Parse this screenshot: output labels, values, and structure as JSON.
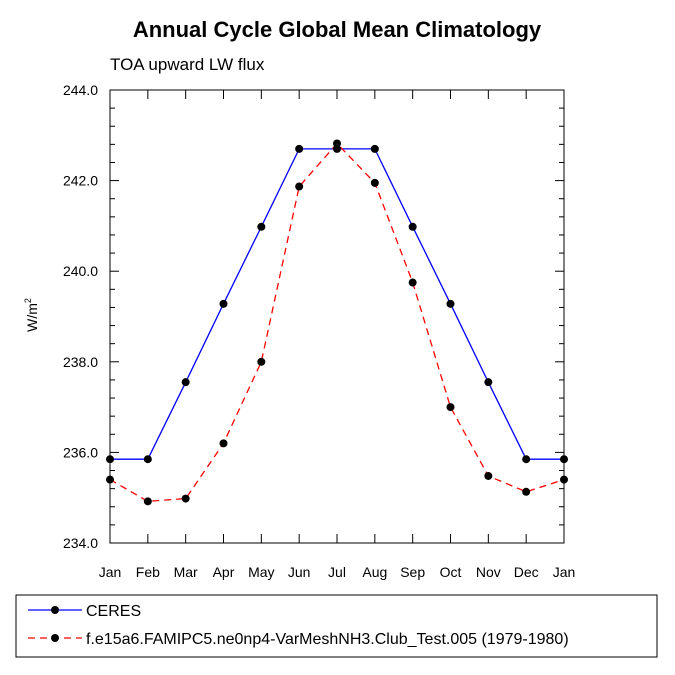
{
  "chart_data": {
    "type": "line",
    "title": "Annual Cycle Global Mean Climatology",
    "subtitle": "TOA upward LW flux",
    "ylabel": "W/m",
    "ylabel_sup": "2",
    "xlabel": "",
    "ylim": [
      234.0,
      244.0
    ],
    "yticks": [
      "234.0",
      "236.0",
      "238.0",
      "240.0",
      "242.0",
      "244.0"
    ],
    "categories": [
      "Jan",
      "Feb",
      "Mar",
      "Apr",
      "May",
      "Jun",
      "Jul",
      "Aug",
      "Sep",
      "Oct",
      "Nov",
      "Dec",
      "Jan"
    ],
    "grid": false,
    "legend_position": "bottom",
    "series": [
      {
        "name": "CERES",
        "color": "#0000ff",
        "dashed": false,
        "values": [
          235.85,
          235.85,
          237.55,
          239.28,
          240.98,
          242.7,
          242.7,
          242.7,
          240.98,
          239.28,
          237.55,
          235.85,
          235.85
        ]
      },
      {
        "name": "f.e15a6.FAMIPC5.ne0np4-VarMeshNH3.Club_Test.005 (1979-1980)",
        "color": "#ff0000",
        "dashed": true,
        "values": [
          235.4,
          234.92,
          234.98,
          236.2,
          238.0,
          241.87,
          242.82,
          241.95,
          239.75,
          237.0,
          235.48,
          235.13,
          235.4
        ]
      }
    ]
  }
}
